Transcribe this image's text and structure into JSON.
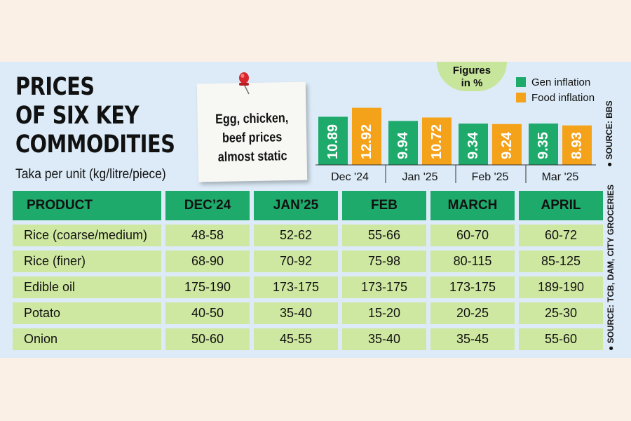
{
  "headline": {
    "line1": "PRICES",
    "line2": "OF SIX KEY",
    "line3": "COMMODITIES",
    "subtitle": "Taka per unit (kg/litre/piece)"
  },
  "note": {
    "text": "Egg, chicken,\nbeef prices\nalmost static"
  },
  "icons": {
    "pin": "push-pin-icon"
  },
  "colors": {
    "gen_inflation": "#1daa6b",
    "food_inflation": "#f5a21b",
    "panel_bg": "#dcebf7",
    "table_header": "#1daa6b",
    "table_cell": "#cfe8a1",
    "badge": "#c7e59b"
  },
  "chart_data": {
    "type": "bar",
    "categories": [
      "Dec '24",
      "Jan '25",
      "Feb '25",
      "Mar '25"
    ],
    "series": [
      {
        "name": "Gen inflation",
        "values": [
          10.89,
          9.94,
          9.34,
          9.35
        ],
        "labels": [
          "10.89",
          "9.94",
          "9.34",
          "9.35"
        ]
      },
      {
        "name": "Food inflation",
        "values": [
          12.92,
          10.72,
          9.24,
          8.93
        ],
        "labels": [
          "12.92",
          "10.72",
          "9.24",
          "8.93"
        ]
      }
    ],
    "units_note": "Figures\nin %",
    "source": "● SOURCE: BBS"
  },
  "table": {
    "headers": [
      "PRODUCT",
      "DEC’24",
      "JAN’25",
      "FEB",
      "MARCH",
      "APRIL"
    ],
    "rows": [
      [
        "Rice (coarse/medium)",
        "48-58",
        "52-62",
        "55-66",
        "60-70",
        "60-72"
      ],
      [
        "Rice (finer)",
        "68-90",
        "70-92",
        "75-98",
        "80-115",
        "85-125"
      ],
      [
        "Edible oil",
        "175-190",
        "173-175",
        "173-175",
        "173-175",
        "189-190"
      ],
      [
        "Potato",
        "40-50",
        "35-40",
        "15-20",
        "20-25",
        "25-30"
      ],
      [
        "Onion",
        "50-60",
        "45-55",
        "35-40",
        "35-45",
        "55-60"
      ]
    ],
    "source": "● SOURCE: TCB, DAM, CITY GROCERIES"
  }
}
